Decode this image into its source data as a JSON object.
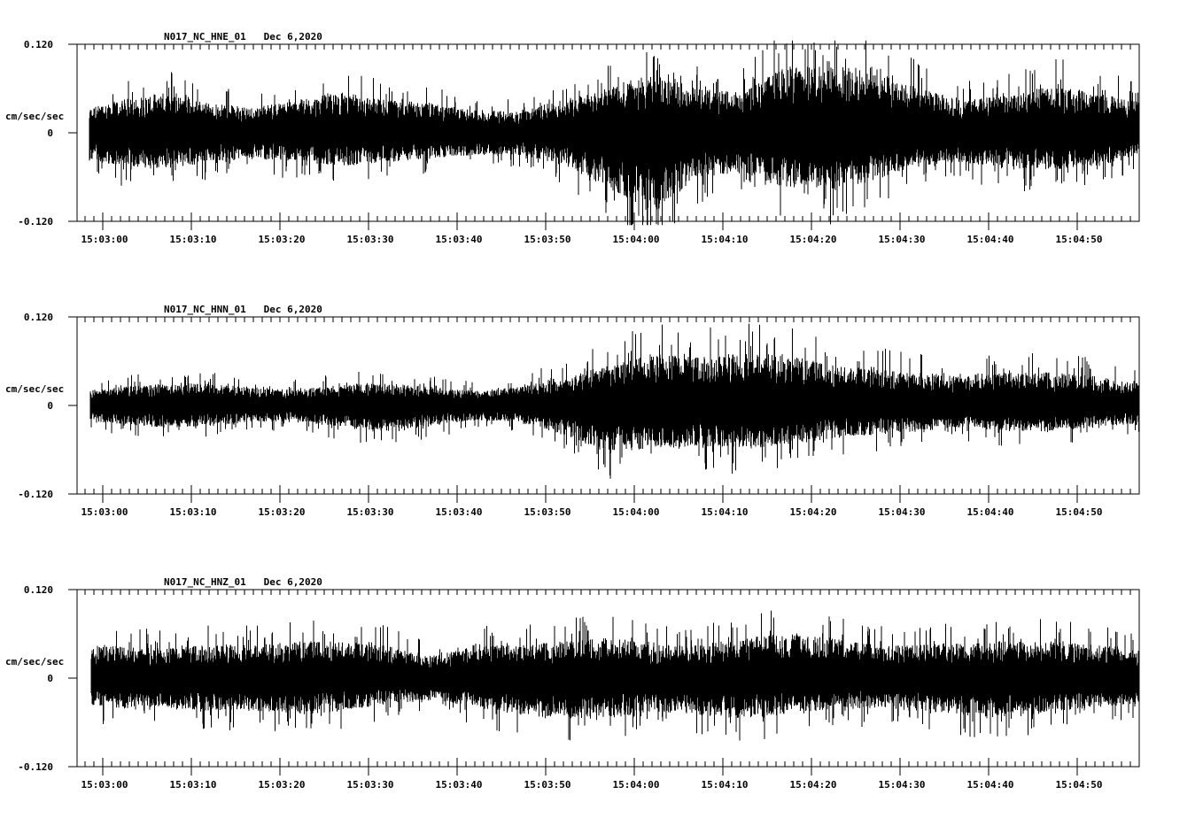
{
  "chart_data": [
    {
      "type": "line",
      "title": "N017_NC_HNE_01   Dec 6,2020",
      "station": "N017_NC_HNE_01",
      "date": "Dec 6,2020",
      "ylabel": "cm/sec/sec",
      "ylim": [
        -0.12,
        0.12
      ],
      "yticks": [
        "0.120",
        "0",
        "-0.120"
      ],
      "xlabel": "",
      "xticks": [
        "15:03:00",
        "15:03:10",
        "15:03:20",
        "15:03:30",
        "15:03:40",
        "15:03:50",
        "15:04:00",
        "15:04:10",
        "15:04:20",
        "15:04:30",
        "15:04:40",
        "15:04:50"
      ],
      "x_range": [
        "15:02:57",
        "15:04:57"
      ],
      "envelope_seconds": [
        0,
        5,
        10,
        15,
        20,
        25,
        30,
        35,
        40,
        45,
        50,
        55,
        60,
        65,
        70,
        75,
        80,
        85,
        90,
        95,
        100,
        105,
        110,
        115,
        119
      ],
      "envelope_amp_pos": [
        0.03,
        0.045,
        0.055,
        0.04,
        0.035,
        0.045,
        0.055,
        0.045,
        0.04,
        0.03,
        0.03,
        0.045,
        0.06,
        0.08,
        0.06,
        0.055,
        0.09,
        0.09,
        0.09,
        0.06,
        0.045,
        0.05,
        0.065,
        0.055,
        0.045
      ],
      "envelope_amp_neg": [
        0.035,
        0.045,
        0.05,
        0.04,
        0.035,
        0.04,
        0.045,
        0.04,
        0.035,
        0.03,
        0.03,
        0.045,
        0.075,
        0.11,
        0.06,
        0.055,
        0.075,
        0.08,
        0.065,
        0.045,
        0.04,
        0.05,
        0.05,
        0.045,
        0.035
      ]
    },
    {
      "type": "line",
      "title": "N017_NC_HNN_01   Dec 6,2020",
      "station": "N017_NC_HNN_01",
      "date": "Dec 6,2020",
      "ylabel": "cm/sec/sec",
      "ylim": [
        -0.12,
        0.12
      ],
      "yticks": [
        "0.120",
        "0",
        "-0.120"
      ],
      "xlabel": "",
      "xticks": [
        "15:03:00",
        "15:03:10",
        "15:03:20",
        "15:03:30",
        "15:03:40",
        "15:03:50",
        "15:04:00",
        "15:04:10",
        "15:04:20",
        "15:04:30",
        "15:04:40",
        "15:04:50"
      ],
      "x_range": [
        "15:02:57",
        "15:04:57"
      ],
      "envelope_seconds": [
        0,
        5,
        10,
        15,
        20,
        25,
        30,
        35,
        40,
        45,
        50,
        55,
        60,
        65,
        70,
        75,
        80,
        85,
        90,
        95,
        100,
        105,
        110,
        115,
        119
      ],
      "envelope_amp_pos": [
        0.02,
        0.025,
        0.03,
        0.03,
        0.025,
        0.022,
        0.028,
        0.03,
        0.025,
        0.02,
        0.025,
        0.04,
        0.055,
        0.07,
        0.065,
        0.07,
        0.07,
        0.055,
        0.05,
        0.045,
        0.04,
        0.045,
        0.045,
        0.04,
        0.03
      ],
      "envelope_amp_neg": [
        0.02,
        0.025,
        0.03,
        0.028,
        0.022,
        0.022,
        0.03,
        0.035,
        0.028,
        0.02,
        0.022,
        0.04,
        0.065,
        0.06,
        0.055,
        0.06,
        0.055,
        0.045,
        0.04,
        0.035,
        0.03,
        0.035,
        0.035,
        0.03,
        0.025
      ]
    },
    {
      "type": "line",
      "title": "N017_NC_HNZ_01   Dec 6,2020",
      "station": "N017_NC_HNZ_01",
      "date": "Dec 6,2020",
      "ylabel": "cm/sec/sec",
      "ylim": [
        -0.12,
        0.12
      ],
      "yticks": [
        "0.120",
        "0",
        "-0.120"
      ],
      "xlabel": "",
      "xticks": [
        "15:03:00",
        "15:03:10",
        "15:03:20",
        "15:03:30",
        "15:03:40",
        "15:03:50",
        "15:04:00",
        "15:04:10",
        "15:04:20",
        "15:04:30",
        "15:04:40",
        "15:04:50"
      ],
      "x_range": [
        "15:02:57",
        "15:04:57"
      ],
      "envelope_seconds": [
        0,
        5,
        10,
        15,
        20,
        25,
        30,
        35,
        40,
        45,
        50,
        55,
        60,
        65,
        70,
        75,
        80,
        85,
        90,
        95,
        100,
        105,
        110,
        115,
        119
      ],
      "envelope_amp_pos": [
        0.045,
        0.045,
        0.04,
        0.045,
        0.045,
        0.05,
        0.05,
        0.045,
        0.03,
        0.045,
        0.045,
        0.05,
        0.055,
        0.045,
        0.045,
        0.055,
        0.06,
        0.055,
        0.045,
        0.045,
        0.05,
        0.05,
        0.05,
        0.045,
        0.04
      ],
      "envelope_amp_neg": [
        0.04,
        0.04,
        0.04,
        0.045,
        0.045,
        0.05,
        0.045,
        0.035,
        0.03,
        0.04,
        0.05,
        0.055,
        0.055,
        0.045,
        0.05,
        0.055,
        0.05,
        0.045,
        0.04,
        0.045,
        0.05,
        0.055,
        0.045,
        0.04,
        0.035
      ]
    }
  ],
  "panels": [
    {
      "title_station": "N017_NC_HNE_01",
      "title_date": "Dec 6,2020",
      "y_top": "0.120",
      "y_mid": "0",
      "y_bot": "-0.120",
      "units": "cm/sec/sec"
    },
    {
      "title_station": "N017_NC_HNN_01",
      "title_date": "Dec 6,2020",
      "y_top": "0.120",
      "y_mid": "0",
      "y_bot": "-0.120",
      "units": "cm/sec/sec"
    },
    {
      "title_station": "N017_NC_HNZ_01",
      "title_date": "Dec 6,2020",
      "y_top": "0.120",
      "y_mid": "0",
      "y_bot": "-0.120",
      "units": "cm/sec/sec"
    }
  ],
  "colors": {
    "trace": "#000000",
    "background": "#ffffff",
    "axis": "#000000"
  }
}
